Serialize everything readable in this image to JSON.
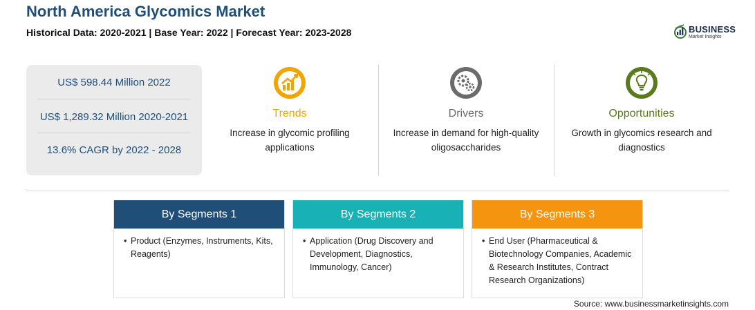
{
  "header": {
    "title": "North America Glycomics Market",
    "subtitle": "Historical Data: 2020-2021 | Base Year: 2022 | Forecast Year: 2023-2028"
  },
  "logo": {
    "line1": "BUSINESS",
    "line2": "Market Insights"
  },
  "stats": [
    "US$ 598.44 Million 2022",
    "US$ 1,289.32 Million 2020-2021",
    "13.6% CAGR by 2022 - 2028"
  ],
  "cards": [
    {
      "heading": "Trends",
      "description": "Increase in glycomic profiling applications",
      "color": "#f0a500",
      "icon": "growth-chart-icon"
    },
    {
      "heading": "Drivers",
      "description": "Increase in demand for high-quality oligosaccharides",
      "color": "#6b6b6b",
      "icon": "gears-icon"
    },
    {
      "heading": "Opportunities",
      "description": "Growth in glycomics research and diagnostics",
      "color": "#5a7a1e",
      "icon": "lightbulb-icon"
    }
  ],
  "segments": [
    {
      "title": "By Segments 1",
      "color": "#1f4e79",
      "items": [
        "Product (Enzymes, Instruments, Kits, Reagents)"
      ]
    },
    {
      "title": "By Segments 2",
      "color": "#17b1b6",
      "items": [
        "Application (Drug Discovery and Development, Diagnostics, Immunology, Cancer)"
      ]
    },
    {
      "title": "By Segments 3",
      "color": "#f5940f",
      "items": [
        "End User (Pharmaceutical & Biotechnology Companies, Academic & Research Institutes, Contract Research Organizations)"
      ]
    }
  ],
  "source": "Source: www.businessmarketinsights.com"
}
